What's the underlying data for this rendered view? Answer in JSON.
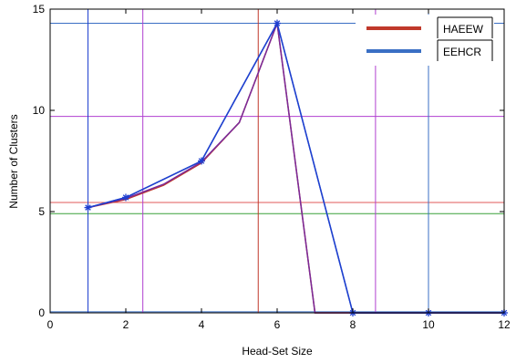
{
  "chart_data": {
    "type": "line",
    "title": "",
    "xlabel": "Head-Set Size",
    "ylabel": "Number of Clusters",
    "xlim": [
      0,
      12
    ],
    "ylim": [
      0,
      15
    ],
    "xticks": [
      0,
      2,
      4,
      6,
      8,
      10,
      12
    ],
    "yticks": [
      0,
      5,
      10,
      15
    ],
    "grid": false,
    "legend_position": "top-right",
    "series": [
      {
        "name": "HAEEW",
        "color": "#c0392b",
        "x": [
          1,
          2,
          3,
          4,
          5,
          6,
          7,
          8,
          9,
          10,
          11,
          12
        ],
        "y": [
          5.2,
          5.6,
          6.3,
          7.4,
          9.4,
          14.3,
          0,
          0,
          0,
          0,
          0,
          0
        ]
      },
      {
        "name": "EEHCR",
        "color": "#3a6fc4",
        "x": [
          1,
          2,
          4,
          6,
          8,
          10,
          12
        ],
        "y": [
          5.2,
          5.7,
          7.5,
          14.3,
          0,
          0,
          0
        ]
      },
      {
        "name": "",
        "color": "#7a2a9a",
        "x": [
          1,
          2,
          3,
          4,
          5,
          6,
          7,
          8,
          9,
          10,
          11,
          12
        ],
        "y": [
          5.2,
          5.65,
          6.35,
          7.45,
          9.4,
          14.3,
          0,
          0,
          0,
          0,
          0,
          0
        ]
      },
      {
        "name": "",
        "color": "#1f3fd0",
        "x": [
          1,
          2,
          4,
          6,
          8,
          10,
          12
        ],
        "y": [
          5.2,
          5.7,
          7.5,
          14.3,
          0,
          0,
          0
        ],
        "marker": "asterisk"
      }
    ],
    "reference_lines": {
      "horizontal": [
        {
          "y": 14.3,
          "color": "#3a6fc4"
        },
        {
          "y": 9.7,
          "color": "#b040d0"
        },
        {
          "y": 5.45,
          "color": "#e05a5a"
        },
        {
          "y": 4.9,
          "color": "#3aa03a"
        },
        {
          "y": 0.05,
          "color": "#3a6fc4"
        }
      ],
      "vertical": [
        {
          "x": 1,
          "color": "#1f3fd0"
        },
        {
          "x": 2.45,
          "color": "#b040d0"
        },
        {
          "x": 5.5,
          "color": "#c0392b"
        },
        {
          "x": 8.6,
          "color": "#b040d0"
        },
        {
          "x": 10.0,
          "color": "#3a6fc4"
        }
      ]
    }
  }
}
